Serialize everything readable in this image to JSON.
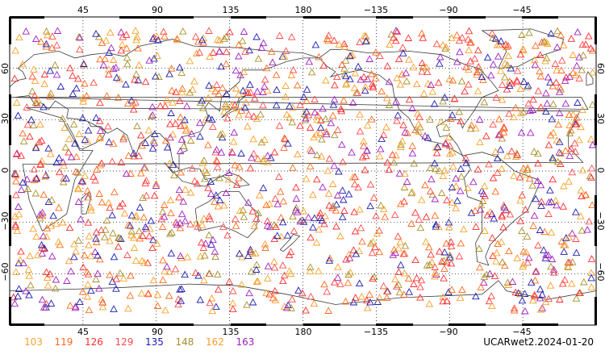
{
  "colors": {
    "c103": "#f2a62a",
    "c119": "#ff6a1a",
    "c126": "#ff2d2d",
    "c129": "#ff4a4a",
    "c135": "#1c1cb0",
    "c148": "#a89028",
    "c162": "#ff9a2a",
    "c163": "#a020c0",
    "coast": "#3a3a3a",
    "grid": "#000000"
  },
  "axes": {
    "top_ticks": [
      "45",
      "90",
      "135",
      "180",
      "−135",
      "−90",
      "−45"
    ],
    "bottom_ticks": [
      "45",
      "90",
      "135",
      "180",
      "−135",
      "−90",
      "−45"
    ],
    "left_ticks": [
      "60",
      "30",
      "0",
      "−30",
      "−60"
    ],
    "right_ticks": [
      "60",
      "30",
      "0",
      "−30",
      "−60"
    ],
    "lon_range": [
      0,
      360
    ],
    "lat_range": [
      -90,
      90
    ],
    "grid": "dotted"
  },
  "legend": {
    "items": [
      {
        "label": "103",
        "color_key": "c103"
      },
      {
        "label": "119",
        "color_key": "c119"
      },
      {
        "label": "126",
        "color_key": "c126"
      },
      {
        "label": "129",
        "color_key": "c129"
      },
      {
        "label": "135",
        "color_key": "c135"
      },
      {
        "label": "148",
        "color_key": "c148"
      },
      {
        "label": "162",
        "color_key": "c162"
      },
      {
        "label": "163",
        "color_key": "c163"
      }
    ]
  },
  "caption": "UCARwet2.2024-01-20",
  "marker": "triangle-outline"
}
